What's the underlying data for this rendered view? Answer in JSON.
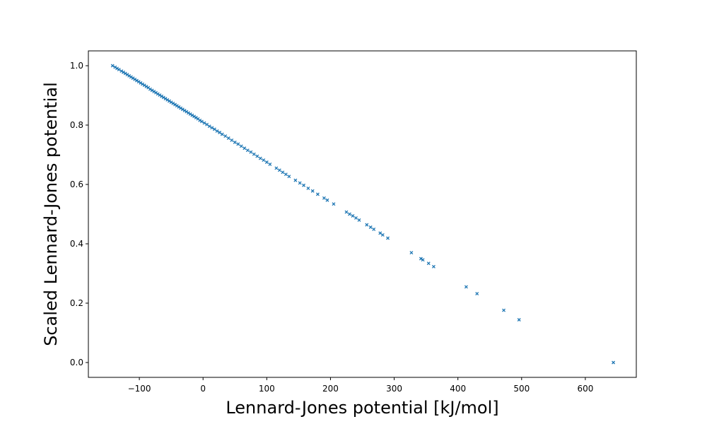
{
  "chart_data": {
    "type": "scatter",
    "title": "",
    "xlabel": "Lennard-Jones potential [kJ/mol]",
    "ylabel": "Scaled Lennard-Jones potential",
    "xlim": [
      -180,
      680
    ],
    "ylim": [
      -0.05,
      1.05
    ],
    "xticks": [
      -100,
      0,
      100,
      200,
      300,
      400,
      500,
      600
    ],
    "xtick_labels": [
      "−100",
      "0",
      "100",
      "200",
      "300",
      "400",
      "500",
      "600"
    ],
    "yticks": [
      0.0,
      0.2,
      0.4,
      0.6,
      0.8,
      1.0
    ],
    "ytick_labels": [
      "0.0",
      "0.2",
      "0.4",
      "0.6",
      "0.8",
      "1.0"
    ],
    "grid": false,
    "marker": "x",
    "color": "#1f77b4",
    "series": [
      {
        "x": [
          -142,
          -138,
          -135,
          -132,
          -128,
          -125,
          -122,
          -119,
          -116,
          -113,
          -110,
          -107,
          -104,
          -101,
          -98,
          -95,
          -92,
          -89,
          -86,
          -83,
          -80,
          -77,
          -74,
          -71,
          -68,
          -65,
          -62,
          -59,
          -56,
          -53,
          -50,
          -47,
          -44,
          -41,
          -38,
          -35,
          -32,
          -29,
          -26,
          -23,
          -20,
          -17,
          -14,
          -11,
          -8,
          -5,
          -2,
          2,
          6,
          10,
          14,
          18,
          22,
          26,
          30,
          35,
          40,
          45,
          50,
          55,
          60,
          65,
          70,
          75,
          80,
          85,
          90,
          95,
          100,
          105,
          115,
          120,
          125,
          130,
          135,
          145,
          152,
          158,
          165,
          172,
          180,
          190,
          195,
          205,
          225,
          230,
          235,
          240,
          245,
          257,
          263,
          268,
          278,
          282,
          290,
          327,
          342,
          345,
          354,
          362,
          413,
          430,
          472,
          496,
          644
        ],
        "y": [
          1.0,
          0.995,
          0.991,
          0.987,
          0.982,
          0.978,
          0.974,
          0.97,
          0.966,
          0.962,
          0.958,
          0.954,
          0.95,
          0.946,
          0.942,
          0.938,
          0.934,
          0.93,
          0.926,
          0.921,
          0.917,
          0.913,
          0.909,
          0.905,
          0.901,
          0.897,
          0.893,
          0.889,
          0.885,
          0.881,
          0.877,
          0.873,
          0.869,
          0.865,
          0.861,
          0.857,
          0.853,
          0.849,
          0.845,
          0.841,
          0.837,
          0.833,
          0.829,
          0.825,
          0.821,
          0.816,
          0.812,
          0.807,
          0.802,
          0.796,
          0.791,
          0.786,
          0.78,
          0.775,
          0.769,
          0.763,
          0.756,
          0.749,
          0.742,
          0.736,
          0.729,
          0.722,
          0.715,
          0.709,
          0.702,
          0.695,
          0.688,
          0.682,
          0.675,
          0.668,
          0.655,
          0.648,
          0.641,
          0.634,
          0.627,
          0.614,
          0.605,
          0.597,
          0.587,
          0.578,
          0.567,
          0.554,
          0.547,
          0.534,
          0.507,
          0.5,
          0.494,
          0.487,
          0.48,
          0.464,
          0.456,
          0.449,
          0.436,
          0.43,
          0.419,
          0.37,
          0.35,
          0.346,
          0.334,
          0.323,
          0.255,
          0.232,
          0.176,
          0.144,
          0.0
        ]
      }
    ]
  }
}
